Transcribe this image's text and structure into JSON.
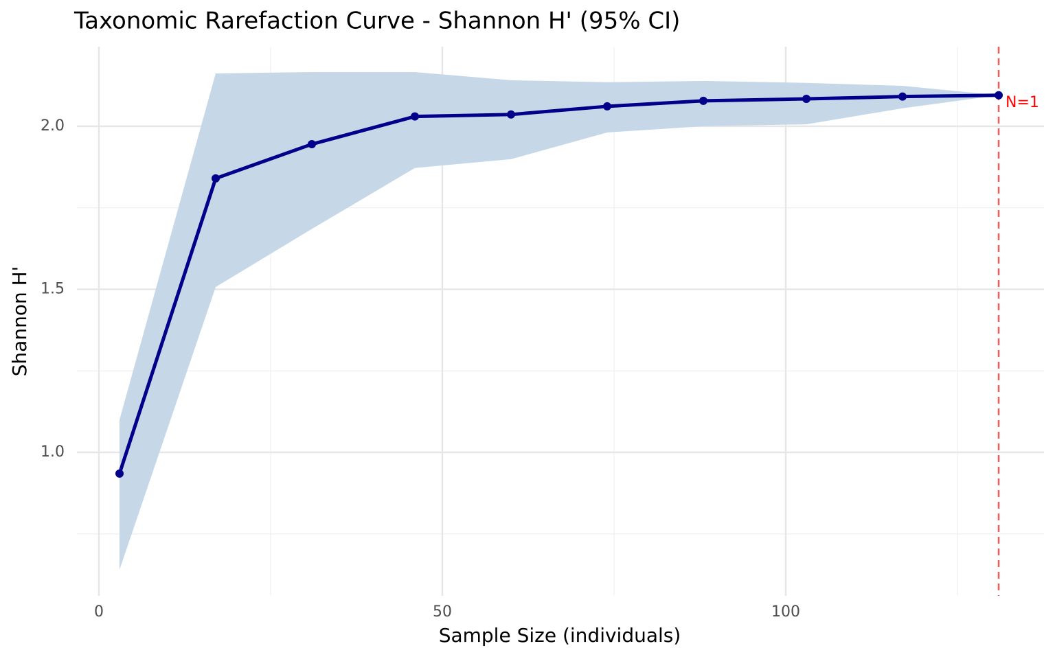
{
  "chart_data": {
    "type": "line",
    "title": "Taxonomic Rarefaction Curve - Shannon H' (95% CI)",
    "x_label": "Sample Size (individuals)",
    "y_label": "Shannon H'",
    "x": [
      3,
      17,
      31,
      46,
      60,
      74,
      88,
      103,
      117,
      131
    ],
    "values": [
      0.935,
      1.84,
      1.945,
      2.03,
      2.036,
      2.061,
      2.078,
      2.084,
      2.091,
      2.095
    ],
    "ci_upper": [
      1.1,
      2.162,
      2.166,
      2.166,
      2.141,
      2.135,
      2.139,
      2.133,
      2.124,
      2.095
    ],
    "ci_lower": [
      0.64,
      1.507,
      1.685,
      1.872,
      1.899,
      1.981,
      2.0,
      2.006,
      2.055,
      2.095
    ],
    "color": "#00008b",
    "band_color": "#c6d8e8",
    "vline": {
      "x": 131,
      "color": "#f25c5c",
      "label": "N=1"
    },
    "xlim": [
      -3.2,
      137.6
    ],
    "ylim": [
      0.56,
      2.244
    ],
    "xticks": [
      0,
      50,
      100
    ],
    "yticks": [
      {
        "value": 1,
        "label": "1.0"
      },
      {
        "value": 1.5,
        "label": "1.5"
      },
      {
        "value": 2,
        "label": "2.0"
      }
    ],
    "x_minor_grid": [
      25,
      75,
      125
    ],
    "y_minor_grid": [
      0.75,
      1.25,
      1.75
    ],
    "grid": true
  }
}
